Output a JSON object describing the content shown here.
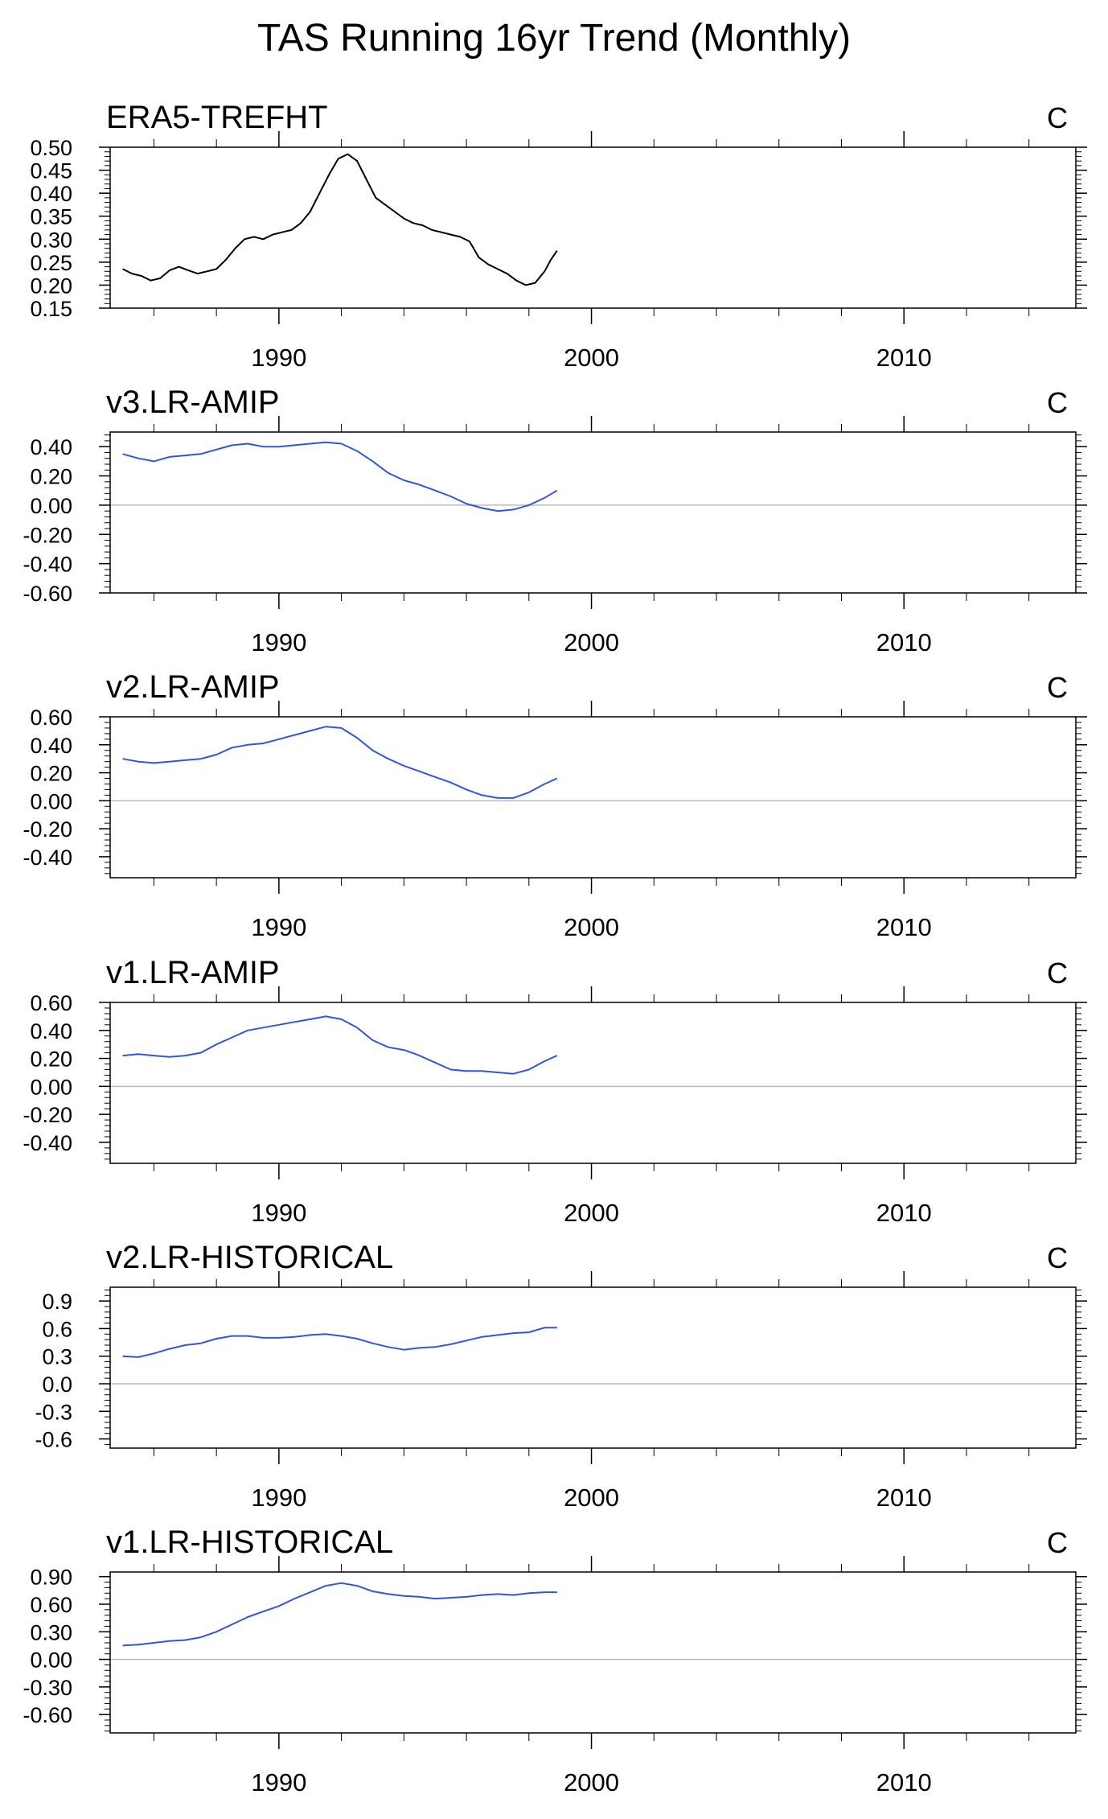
{
  "title": "TAS Running 16yr Trend (Monthly)",
  "chart_data": [
    {
      "type": "line",
      "title": "ERA5-TREFHT",
      "unit": "C",
      "ylim": [
        0.15,
        0.5
      ],
      "yticks": [
        0.15,
        0.2,
        0.25,
        0.3,
        0.35,
        0.4,
        0.45,
        0.5
      ],
      "ytick_labels": [
        "0.15",
        "0.20",
        "0.25",
        "0.30",
        "0.35",
        "0.40",
        "0.45",
        "0.50"
      ],
      "xlim": [
        1984.6,
        2015.5
      ],
      "xticks": [
        1990,
        2000,
        2010
      ],
      "xtick_labels": [
        "1990",
        "2000",
        "2010"
      ],
      "zero_line": false,
      "color": "#000000",
      "series": [
        {
          "x": [
            1985.0,
            1985.3,
            1985.6,
            1985.9,
            1986.2,
            1986.5,
            1986.8,
            1987.1,
            1987.4,
            1987.7,
            1988.0,
            1988.3,
            1988.6,
            1988.9,
            1989.2,
            1989.5,
            1989.8,
            1990.1,
            1990.4,
            1990.7,
            1991.0,
            1991.3,
            1991.6,
            1991.9,
            1992.2,
            1992.5,
            1992.8,
            1993.1,
            1993.4,
            1993.7,
            1994.0,
            1994.3,
            1994.6,
            1994.9,
            1995.2,
            1995.5,
            1995.8,
            1996.1,
            1996.4,
            1996.7,
            1997.0,
            1997.3,
            1997.6,
            1997.9,
            1998.2,
            1998.5,
            1998.7,
            1998.9
          ],
          "y": [
            0.235,
            0.225,
            0.22,
            0.21,
            0.215,
            0.232,
            0.24,
            0.232,
            0.225,
            0.23,
            0.235,
            0.255,
            0.28,
            0.3,
            0.305,
            0.3,
            0.31,
            0.315,
            0.32,
            0.335,
            0.36,
            0.4,
            0.44,
            0.475,
            0.485,
            0.47,
            0.43,
            0.39,
            0.375,
            0.36,
            0.345,
            0.335,
            0.33,
            0.32,
            0.315,
            0.31,
            0.305,
            0.295,
            0.26,
            0.245,
            0.235,
            0.225,
            0.21,
            0.2,
            0.205,
            0.23,
            0.255,
            0.275
          ]
        }
      ]
    },
    {
      "type": "line",
      "title": "v3.LR-AMIP",
      "unit": "C",
      "ylim": [
        -0.6,
        0.5
      ],
      "yticks": [
        -0.6,
        -0.4,
        -0.2,
        0.0,
        0.2,
        0.4
      ],
      "ytick_labels": [
        "-0.60",
        "-0.40",
        "-0.20",
        "0.00",
        "0.20",
        "0.40"
      ],
      "xlim": [
        1984.6,
        2015.5
      ],
      "xticks": [
        1990,
        2000,
        2010
      ],
      "xtick_labels": [
        "1990",
        "2000",
        "2010"
      ],
      "zero_line": true,
      "color": "#3355dd",
      "series": [
        {
          "x": [
            1985.0,
            1985.5,
            1986.0,
            1986.5,
            1987.0,
            1987.5,
            1988.0,
            1988.5,
            1989.0,
            1989.5,
            1990.0,
            1990.5,
            1991.0,
            1991.5,
            1992.0,
            1992.5,
            1993.0,
            1993.5,
            1994.0,
            1994.5,
            1995.0,
            1995.5,
            1996.0,
            1996.5,
            1997.0,
            1997.5,
            1998.0,
            1998.5,
            1998.9
          ],
          "y": [
            0.35,
            0.32,
            0.3,
            0.33,
            0.34,
            0.35,
            0.38,
            0.41,
            0.42,
            0.4,
            0.4,
            0.41,
            0.42,
            0.43,
            0.42,
            0.37,
            0.3,
            0.22,
            0.17,
            0.14,
            0.1,
            0.06,
            0.01,
            -0.02,
            -0.04,
            -0.03,
            0.0,
            0.05,
            0.1
          ]
        }
      ]
    },
    {
      "type": "line",
      "title": "v2.LR-AMIP",
      "unit": "C",
      "ylim": [
        -0.55,
        0.6
      ],
      "yticks": [
        -0.4,
        -0.2,
        0.0,
        0.2,
        0.4,
        0.6
      ],
      "ytick_labels": [
        "-0.40",
        "-0.20",
        "0.00",
        "0.20",
        "0.40",
        "0.60"
      ],
      "xlim": [
        1984.6,
        2015.5
      ],
      "xticks": [
        1990,
        2000,
        2010
      ],
      "xtick_labels": [
        "1990",
        "2000",
        "2010"
      ],
      "zero_line": true,
      "color": "#3355dd",
      "series": [
        {
          "x": [
            1985.0,
            1985.5,
            1986.0,
            1986.5,
            1987.0,
            1987.5,
            1988.0,
            1988.5,
            1989.0,
            1989.5,
            1990.0,
            1990.5,
            1991.0,
            1991.5,
            1992.0,
            1992.5,
            1993.0,
            1993.5,
            1994.0,
            1994.5,
            1995.0,
            1995.5,
            1996.0,
            1996.5,
            1997.0,
            1997.5,
            1998.0,
            1998.5,
            1998.9
          ],
          "y": [
            0.3,
            0.28,
            0.27,
            0.28,
            0.29,
            0.3,
            0.33,
            0.38,
            0.4,
            0.41,
            0.44,
            0.47,
            0.5,
            0.53,
            0.52,
            0.45,
            0.36,
            0.3,
            0.25,
            0.21,
            0.17,
            0.13,
            0.08,
            0.04,
            0.02,
            0.02,
            0.06,
            0.12,
            0.16
          ]
        }
      ]
    },
    {
      "type": "line",
      "title": "v1.LR-AMIP",
      "unit": "C",
      "ylim": [
        -0.55,
        0.6
      ],
      "yticks": [
        -0.4,
        -0.2,
        0.0,
        0.2,
        0.4,
        0.6
      ],
      "ytick_labels": [
        "-0.40",
        "-0.20",
        "0.00",
        "0.20",
        "0.40",
        "0.60"
      ],
      "xlim": [
        1984.6,
        2015.5
      ],
      "xticks": [
        1990,
        2000,
        2010
      ],
      "xtick_labels": [
        "1990",
        "2000",
        "2010"
      ],
      "zero_line": true,
      "color": "#3355dd",
      "series": [
        {
          "x": [
            1985.0,
            1985.5,
            1986.0,
            1986.5,
            1987.0,
            1987.5,
            1988.0,
            1988.5,
            1989.0,
            1989.5,
            1990.0,
            1990.5,
            1991.0,
            1991.5,
            1992.0,
            1992.5,
            1993.0,
            1993.5,
            1994.0,
            1994.5,
            1995.0,
            1995.5,
            1996.0,
            1996.5,
            1997.0,
            1997.5,
            1998.0,
            1998.5,
            1998.9
          ],
          "y": [
            0.22,
            0.23,
            0.22,
            0.21,
            0.22,
            0.24,
            0.3,
            0.35,
            0.4,
            0.42,
            0.44,
            0.46,
            0.48,
            0.5,
            0.48,
            0.42,
            0.33,
            0.28,
            0.26,
            0.22,
            0.17,
            0.12,
            0.11,
            0.11,
            0.1,
            0.09,
            0.12,
            0.18,
            0.22
          ]
        }
      ]
    },
    {
      "type": "line",
      "title": "v2.LR-HISTORICAL",
      "unit": "C",
      "ylim": [
        -0.7,
        1.05
      ],
      "yticks": [
        -0.6,
        -0.3,
        0.0,
        0.3,
        0.6,
        0.9
      ],
      "ytick_labels": [
        "-0.6",
        "-0.3",
        "0.0",
        "0.3",
        "0.6",
        "0.9"
      ],
      "xlim": [
        1984.6,
        2015.5
      ],
      "xticks": [
        1990,
        2000,
        2010
      ],
      "xtick_labels": [
        "1990",
        "2000",
        "2010"
      ],
      "zero_line": true,
      "color": "#3355dd",
      "series": [
        {
          "x": [
            1985.0,
            1985.5,
            1986.0,
            1986.5,
            1987.0,
            1987.5,
            1988.0,
            1988.5,
            1989.0,
            1989.5,
            1990.0,
            1990.5,
            1991.0,
            1991.5,
            1992.0,
            1992.5,
            1993.0,
            1993.5,
            1994.0,
            1994.5,
            1995.0,
            1995.5,
            1996.0,
            1996.5,
            1997.0,
            1997.5,
            1998.0,
            1998.5,
            1998.9
          ],
          "y": [
            0.3,
            0.29,
            0.33,
            0.38,
            0.42,
            0.44,
            0.49,
            0.52,
            0.52,
            0.5,
            0.5,
            0.51,
            0.53,
            0.54,
            0.52,
            0.49,
            0.44,
            0.4,
            0.37,
            0.39,
            0.4,
            0.43,
            0.47,
            0.51,
            0.53,
            0.55,
            0.56,
            0.61,
            0.61
          ]
        }
      ]
    },
    {
      "type": "line",
      "title": "v1.LR-HISTORICAL",
      "unit": "C",
      "ylim": [
        -0.8,
        0.95
      ],
      "yticks": [
        -0.6,
        -0.3,
        0.0,
        0.3,
        0.6,
        0.9
      ],
      "ytick_labels": [
        "-0.60",
        "-0.30",
        "0.00",
        "0.30",
        "0.60",
        "0.90"
      ],
      "xlim": [
        1984.6,
        2015.5
      ],
      "xticks": [
        1990,
        2000,
        2010
      ],
      "xtick_labels": [
        "1990",
        "2000",
        "2010"
      ],
      "zero_line": true,
      "color": "#3355dd",
      "series": [
        {
          "x": [
            1985.0,
            1985.5,
            1986.0,
            1986.5,
            1987.0,
            1987.5,
            1988.0,
            1988.5,
            1989.0,
            1989.5,
            1990.0,
            1990.5,
            1991.0,
            1991.5,
            1992.0,
            1992.5,
            1993.0,
            1993.5,
            1994.0,
            1994.5,
            1995.0,
            1995.5,
            1996.0,
            1996.5,
            1997.0,
            1997.5,
            1998.0,
            1998.5,
            1998.9
          ],
          "y": [
            0.15,
            0.16,
            0.18,
            0.2,
            0.21,
            0.24,
            0.3,
            0.38,
            0.46,
            0.52,
            0.58,
            0.66,
            0.73,
            0.8,
            0.83,
            0.8,
            0.74,
            0.71,
            0.69,
            0.68,
            0.66,
            0.67,
            0.68,
            0.7,
            0.71,
            0.7,
            0.72,
            0.73,
            0.73
          ]
        }
      ]
    }
  ]
}
